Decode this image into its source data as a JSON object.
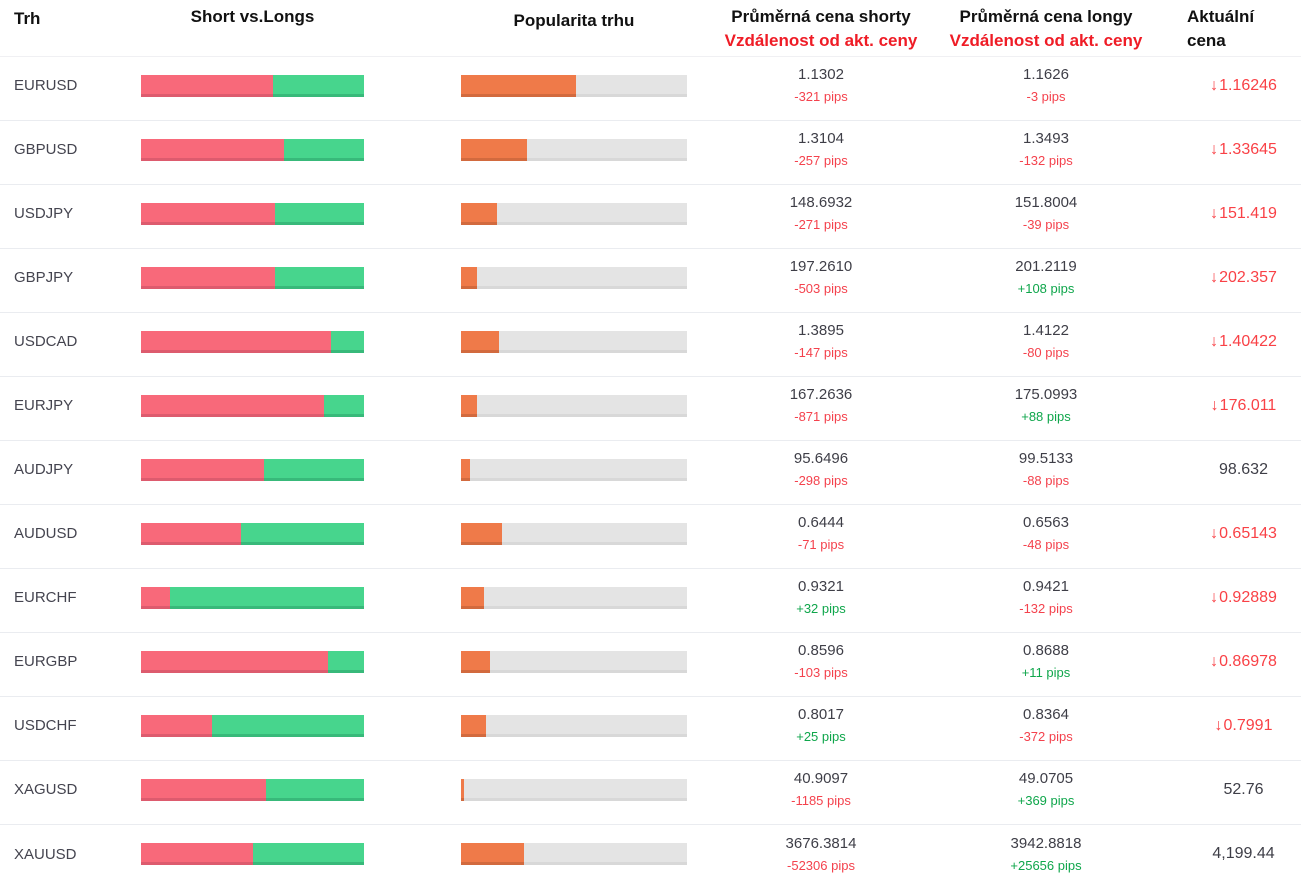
{
  "header": {
    "col_market": "Trh",
    "col_short_vs_longs": "Short vs.Longs",
    "col_popularity": "Popularita trhu",
    "col_short_avg_line1": "Průměrná cena shorty",
    "col_short_avg_line2": "Vzdálenost od akt. ceny",
    "col_long_avg_line1": "Průměrná cena longy",
    "col_long_avg_line2": "Vzdálenost od akt. ceny",
    "col_current_line1": "Aktuální",
    "col_current_line2": "cena"
  },
  "icons": {
    "down_arrow": "↓"
  },
  "colors": {
    "short_bar": "#f8697a",
    "long_bar": "#47d58d",
    "popularity_bar": "#ef7a49",
    "track": "#e4e4e4",
    "negative_text": "#f4424d",
    "positive_text": "#0fa64b",
    "header_red": "#ef1c26",
    "current_down_red": "#f94146",
    "dark_text": "#3e3e47"
  },
  "rows": [
    {
      "market": "EURUSD",
      "short_pct": 59,
      "long_pct": 41,
      "popularity_pct": 51,
      "short_avg": "1.1302",
      "short_dist": "-321 pips",
      "long_avg": "1.1626",
      "long_dist": "-3 pips",
      "current": "1.16246",
      "current_down": true
    },
    {
      "market": "GBPUSD",
      "short_pct": 64,
      "long_pct": 36,
      "popularity_pct": 29,
      "short_avg": "1.3104",
      "short_dist": "-257 pips",
      "long_avg": "1.3493",
      "long_dist": "-132 pips",
      "current": "1.33645",
      "current_down": true
    },
    {
      "market": "USDJPY",
      "short_pct": 60,
      "long_pct": 40,
      "popularity_pct": 16,
      "short_avg": "148.6932",
      "short_dist": "-271 pips",
      "long_avg": "151.8004",
      "long_dist": "-39 pips",
      "current": "151.419",
      "current_down": true
    },
    {
      "market": "GBPJPY",
      "short_pct": 60,
      "long_pct": 40,
      "popularity_pct": 7,
      "short_avg": "197.2610",
      "short_dist": "-503 pips",
      "long_avg": "201.2119",
      "long_dist": "+108 pips",
      "current": "202.357",
      "current_down": true
    },
    {
      "market": "USDCAD",
      "short_pct": 85,
      "long_pct": 15,
      "popularity_pct": 17,
      "short_avg": "1.3895",
      "short_dist": "-147 pips",
      "long_avg": "1.4122",
      "long_dist": "-80 pips",
      "current": "1.40422",
      "current_down": true
    },
    {
      "market": "EURJPY",
      "short_pct": 82,
      "long_pct": 18,
      "popularity_pct": 7,
      "short_avg": "167.2636",
      "short_dist": "-871 pips",
      "long_avg": "175.0993",
      "long_dist": "+88 pips",
      "current": "176.011",
      "current_down": true
    },
    {
      "market": "AUDJPY",
      "short_pct": 55,
      "long_pct": 45,
      "popularity_pct": 4,
      "short_avg": "95.6496",
      "short_dist": "-298 pips",
      "long_avg": "99.5133",
      "long_dist": "-88 pips",
      "current": "98.632",
      "current_down": false
    },
    {
      "market": "AUDUSD",
      "short_pct": 45,
      "long_pct": 55,
      "popularity_pct": 18,
      "short_avg": "0.6444",
      "short_dist": "-71 pips",
      "long_avg": "0.6563",
      "long_dist": "-48 pips",
      "current": "0.65143",
      "current_down": true
    },
    {
      "market": "EURCHF",
      "short_pct": 13,
      "long_pct": 87,
      "popularity_pct": 10,
      "short_avg": "0.9321",
      "short_dist": "+32 pips",
      "long_avg": "0.9421",
      "long_dist": "-132 pips",
      "current": "0.92889",
      "current_down": true
    },
    {
      "market": "EURGBP",
      "short_pct": 84,
      "long_pct": 16,
      "popularity_pct": 13,
      "short_avg": "0.8596",
      "short_dist": "-103 pips",
      "long_avg": "0.8688",
      "long_dist": "+11 pips",
      "current": "0.86978",
      "current_down": true
    },
    {
      "market": "USDCHF",
      "short_pct": 32,
      "long_pct": 68,
      "popularity_pct": 11,
      "short_avg": "0.8017",
      "short_dist": "+25 pips",
      "long_avg": "0.8364",
      "long_dist": "-372 pips",
      "current": "0.7991",
      "current_down": true
    },
    {
      "market": "XAGUSD",
      "short_pct": 56,
      "long_pct": 44,
      "popularity_pct": 1.5,
      "short_avg": "40.9097",
      "short_dist": "-1185 pips",
      "long_avg": "49.0705",
      "long_dist": "+369 pips",
      "current": "52.76",
      "current_down": false
    },
    {
      "market": "XAUUSD",
      "short_pct": 50,
      "long_pct": 50,
      "popularity_pct": 28,
      "short_avg": "3676.3814",
      "short_dist": "-52306 pips",
      "long_avg": "3942.8818",
      "long_dist": "+25656 pips",
      "current": "4,199.44",
      "current_down": false
    }
  ]
}
